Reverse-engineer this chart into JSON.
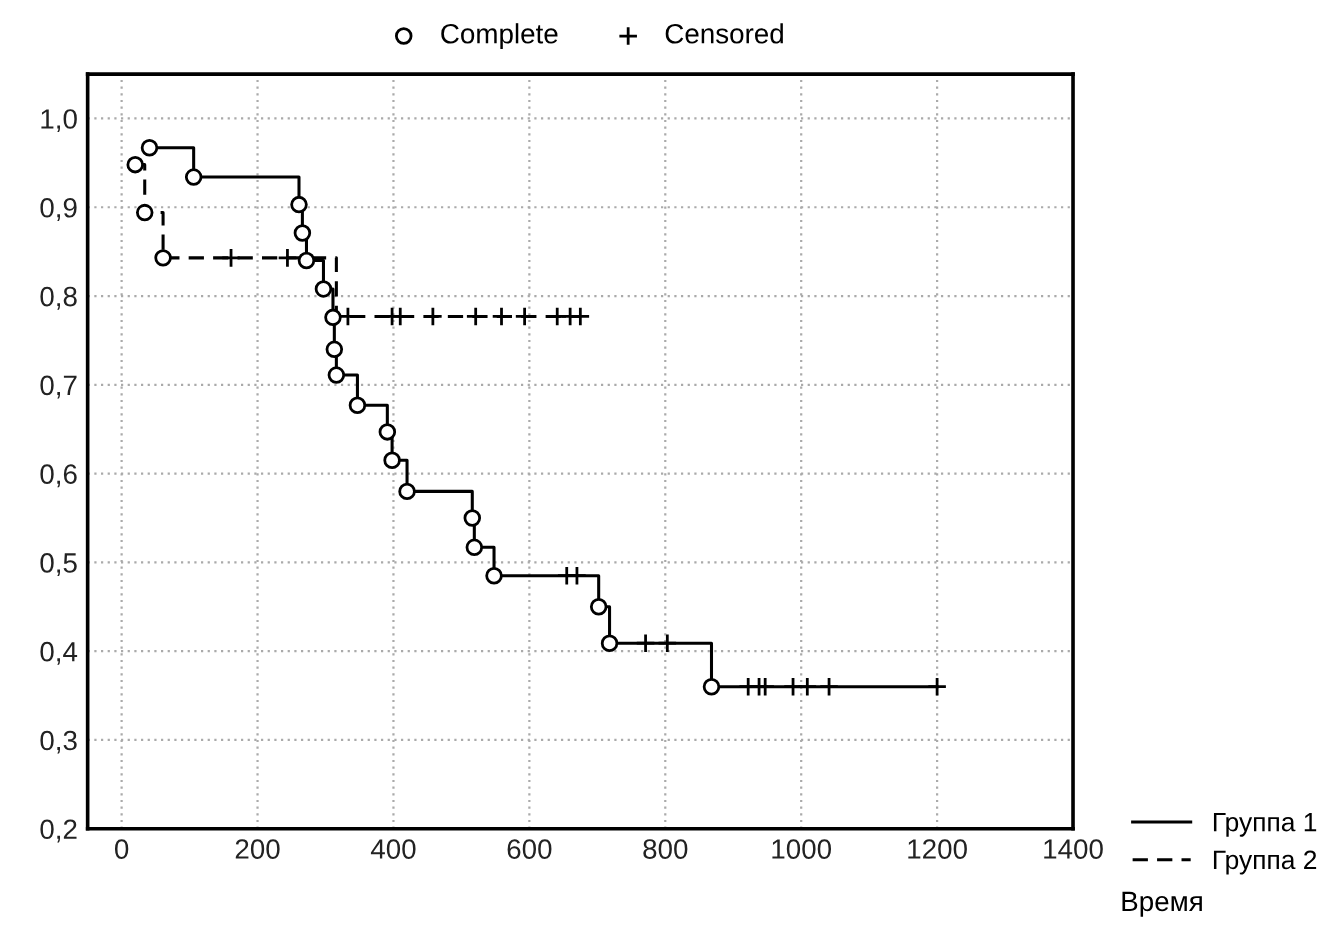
{
  "chart_data": {
    "type": "step",
    "xlabel": "Время",
    "series": [
      {
        "name": "Группа 1",
        "color": "#000000",
        "line_style": "solid",
        "x": [
          41,
          106,
          261,
          266,
          272,
          297,
          311,
          313,
          316,
          347,
          391,
          398,
          420,
          516,
          519,
          548,
          702,
          718,
          868,
          1200
        ],
        "values": [
          0.967,
          0.934,
          0.903,
          0.871,
          0.84,
          0.808,
          0.776,
          0.74,
          0.711,
          0.677,
          0.647,
          0.615,
          0.58,
          0.55,
          0.517,
          0.485,
          0.45,
          0.409,
          0.36,
          0.36
        ]
      },
      {
        "name": "Группа 2",
        "color": "#000000",
        "line_style": "dashed",
        "x": [
          20,
          34,
          61,
          316,
          675
        ],
        "values": [
          0.948,
          0.894,
          0.843,
          0.777,
          0.777
        ]
      },
      {
        "name": "Complete",
        "type": "scatter",
        "color": "#000000",
        "marker": "circle",
        "x": [
          41,
          106,
          261,
          266,
          272,
          297,
          311,
          313,
          316,
          347,
          391,
          398,
          420,
          516,
          519,
          548,
          702,
          718,
          868,
          20,
          34,
          61
        ],
        "values": [
          0.967,
          0.934,
          0.903,
          0.871,
          0.84,
          0.808,
          0.776,
          0.74,
          0.711,
          0.677,
          0.647,
          0.615,
          0.58,
          0.55,
          0.517,
          0.485,
          0.45,
          0.409,
          0.36,
          0.948,
          0.894,
          0.843
        ]
      },
      {
        "name": "Censored",
        "type": "scatter",
        "color": "#000000",
        "marker": "cross",
        "x": [
          161,
          244,
          333,
          398,
          410,
          458,
          521,
          559,
          593,
          641,
          660,
          675,
          655,
          670,
          771,
          803,
          922,
          938,
          947,
          988,
          1009,
          1041,
          1200
        ],
        "values": [
          0.843,
          0.843,
          0.777,
          0.777,
          0.777,
          0.777,
          0.777,
          0.777,
          0.777,
          0.777,
          0.777,
          0.777,
          0.485,
          0.485,
          0.409,
          0.409,
          0.36,
          0.36,
          0.36,
          0.36,
          0.36,
          0.36,
          0.36
        ]
      }
    ],
    "xlim": [
      -50,
      1400
    ],
    "xticks": [
      0,
      200,
      400,
      600,
      800,
      1000,
      1200,
      1400
    ],
    "ylim": [
      0.2,
      1.05
    ],
    "yticks": [
      {
        "value": 0.2,
        "label": "0,2"
      },
      {
        "value": 0.3,
        "label": "0,3"
      },
      {
        "value": 0.4,
        "label": "0,4"
      },
      {
        "value": 0.5,
        "label": "0,5"
      },
      {
        "value": 0.6,
        "label": "0,6"
      },
      {
        "value": 0.7,
        "label": "0,7"
      },
      {
        "value": 0.8,
        "label": "0,8"
      },
      {
        "value": 0.9,
        "label": "0,9"
      },
      {
        "value": 1.0,
        "label": "1,0"
      }
    ],
    "grid": true,
    "legend": "top"
  }
}
